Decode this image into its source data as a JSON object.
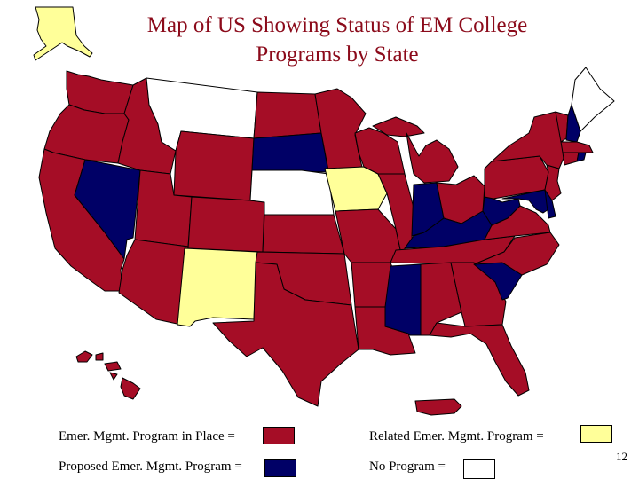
{
  "title": {
    "line1": "Map of US Showing Status of EM College",
    "line2": "Programs by State"
  },
  "legend": {
    "in_place": {
      "label": "Emer. Mgmt. Program in Place =",
      "color": "#a50d26"
    },
    "related": {
      "label": "Related Emer. Mgmt. Program =",
      "color": "#ffff99"
    },
    "proposed": {
      "label": "Proposed Emer. Mgmt. Program =",
      "color": "#000066"
    },
    "none": {
      "label": "No Program =",
      "color": "#ffffff"
    }
  },
  "page_number": "12",
  "states": {
    "in_place": [
      "WA",
      "OR",
      "CA",
      "ID",
      "WY",
      "UT",
      "AZ",
      "CO",
      "ND",
      "MN",
      "KS",
      "OK",
      "TX",
      "MO",
      "AR",
      "LA",
      "WI",
      "IL",
      "MI",
      "OH",
      "PA",
      "NY",
      "VT",
      "MA",
      "CT",
      "NJ",
      "VA",
      "NC",
      "TN",
      "AL",
      "GA",
      "FL",
      "HI",
      "PR"
    ],
    "related": [
      "AK",
      "IA",
      "NM"
    ],
    "proposed": [
      "NV",
      "SD",
      "IN",
      "KY",
      "WV",
      "MD",
      "DE",
      "NH",
      "RI",
      "SC",
      "MS"
    ],
    "none": [
      "MT",
      "NE",
      "ME"
    ]
  }
}
